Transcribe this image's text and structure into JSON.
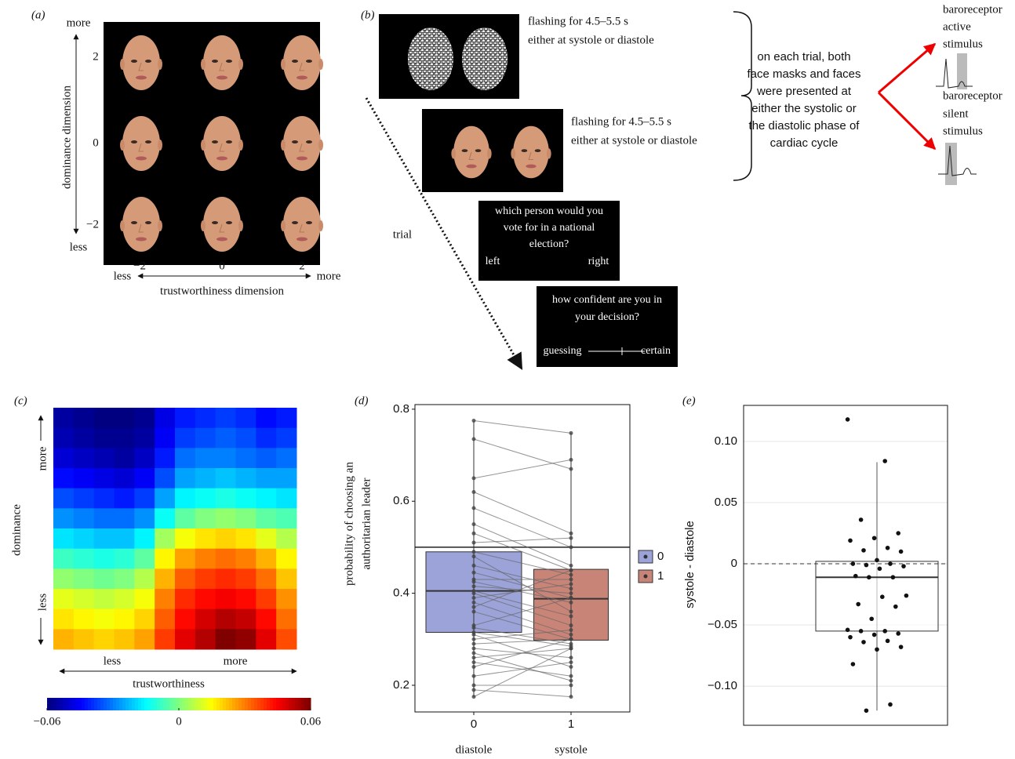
{
  "panel_a": {
    "label": "(a)",
    "y_more": "more",
    "y_less": "less",
    "y_title": "dominance dimension",
    "y_ticks": [
      "2",
      "0",
      "−2"
    ],
    "x_ticks": [
      "−2",
      "0",
      "2"
    ],
    "x_less": "less",
    "x_more": "more",
    "x_title": "trustworthiness dimension"
  },
  "panel_b": {
    "label": "(b)",
    "mask_text": [
      "flashing for 4.5–5.5 s",
      "either at systole or diastole"
    ],
    "face_text": [
      "flashing for 4.5–5.5 s",
      "either at systole or diastole"
    ],
    "question": [
      "which person would you",
      "vote for in a national",
      "election?"
    ],
    "left": "left",
    "right": "right",
    "confidence": [
      "how confident are you in",
      "your decision?"
    ],
    "guessing": "guessing",
    "certain": "certain",
    "trial": "trial",
    "brace_text": [
      "on each trial, both",
      "face masks and faces",
      "were presented at",
      "either the systolic or",
      "the diastolic phase of",
      "cardiac cycle"
    ],
    "active": [
      "baroreceptor",
      "active",
      "stimulus"
    ],
    "silent": [
      "baroreceptor",
      "silent",
      "stimulus"
    ]
  },
  "chart_data": [
    {
      "type": "heatmap",
      "panel_label": "(c)",
      "ylabel": "dominance",
      "xlabel": "trustworthiness",
      "y_more": "more",
      "y_less": "less",
      "x_less": "less",
      "x_more": "more",
      "colormap": "jet",
      "values": [
        [
          -0.056,
          -0.058,
          -0.06,
          -0.06,
          -0.058,
          -0.048,
          -0.042,
          -0.04,
          -0.038,
          -0.04,
          -0.044,
          -0.042
        ],
        [
          -0.054,
          -0.056,
          -0.058,
          -0.058,
          -0.056,
          -0.046,
          -0.038,
          -0.036,
          -0.034,
          -0.036,
          -0.04,
          -0.038
        ],
        [
          -0.05,
          -0.052,
          -0.054,
          -0.056,
          -0.052,
          -0.042,
          -0.032,
          -0.03,
          -0.03,
          -0.032,
          -0.034,
          -0.032
        ],
        [
          -0.044,
          -0.046,
          -0.048,
          -0.05,
          -0.046,
          -0.036,
          -0.026,
          -0.024,
          -0.022,
          -0.024,
          -0.026,
          -0.026
        ],
        [
          -0.036,
          -0.038,
          -0.04,
          -0.042,
          -0.038,
          -0.026,
          -0.016,
          -0.014,
          -0.012,
          -0.014,
          -0.016,
          -0.018
        ],
        [
          -0.028,
          -0.03,
          -0.032,
          -0.032,
          -0.028,
          -0.014,
          -0.004,
          0.0,
          0.002,
          0.0,
          -0.004,
          -0.006
        ],
        [
          -0.018,
          -0.02,
          -0.022,
          -0.022,
          -0.016,
          0.004,
          0.014,
          0.018,
          0.02,
          0.018,
          0.012,
          0.006
        ],
        [
          -0.008,
          -0.01,
          -0.012,
          -0.01,
          -0.004,
          0.016,
          0.026,
          0.03,
          0.032,
          0.03,
          0.024,
          0.016
        ],
        [
          0.002,
          0.0,
          -0.002,
          0.0,
          0.006,
          0.024,
          0.034,
          0.038,
          0.04,
          0.038,
          0.032,
          0.022
        ],
        [
          0.012,
          0.01,
          0.008,
          0.01,
          0.014,
          0.03,
          0.04,
          0.044,
          0.046,
          0.044,
          0.038,
          0.028
        ],
        [
          0.018,
          0.016,
          0.014,
          0.016,
          0.02,
          0.034,
          0.044,
          0.05,
          0.054,
          0.052,
          0.044,
          0.032
        ],
        [
          0.024,
          0.022,
          0.02,
          0.022,
          0.026,
          0.038,
          0.048,
          0.054,
          0.06,
          0.058,
          0.048,
          0.036
        ]
      ],
      "clim": [
        -0.06,
        0.06
      ],
      "cticks": [
        {
          "value": -0.06,
          "label": "−0.06"
        },
        0,
        0.06
      ]
    },
    {
      "type": "paired-box",
      "panel_label": "(d)",
      "categories": [
        "0",
        "1"
      ],
      "category_labels": [
        "diastole",
        "systole"
      ],
      "ylabel_lines": [
        "probability of choosing an",
        "authoritarian leader"
      ],
      "ylim": [
        0.142,
        0.81
      ],
      "yticks": [
        0.2,
        0.4,
        0.6,
        0.8
      ],
      "hline": 0.5,
      "legend": "right",
      "series": [
        {
          "name": "0",
          "color": "#9ba3d8",
          "box": {
            "whisker_low": 0.175,
            "q1": 0.315,
            "median": 0.405,
            "q3": 0.49,
            "whisker_high": 0.775
          },
          "values": [
            0.775,
            0.735,
            0.65,
            0.62,
            0.585,
            0.55,
            0.53,
            0.51,
            0.49,
            0.48,
            0.46,
            0.445,
            0.43,
            0.425,
            0.415,
            0.405,
            0.4,
            0.39,
            0.38,
            0.37,
            0.36,
            0.33,
            0.325,
            0.315,
            0.31,
            0.3,
            0.29,
            0.28,
            0.27,
            0.26,
            0.25,
            0.24,
            0.22,
            0.2,
            0.19,
            0.175
          ]
        },
        {
          "name": "1",
          "color": "#c98478",
          "box": {
            "whisker_low": 0.175,
            "q1": 0.298,
            "median": 0.388,
            "q3": 0.452,
            "whisker_high": 0.748
          },
          "values": [
            0.748,
            0.67,
            0.69,
            0.53,
            0.5,
            0.46,
            0.45,
            0.52,
            0.44,
            0.36,
            0.41,
            0.39,
            0.43,
            0.38,
            0.4,
            0.35,
            0.33,
            0.42,
            0.31,
            0.45,
            0.3,
            0.39,
            0.29,
            0.285,
            0.24,
            0.32,
            0.3,
            0.26,
            0.21,
            0.28,
            0.22,
            0.3,
            0.25,
            0.2,
            0.175,
            0.28
          ]
        }
      ]
    },
    {
      "type": "box",
      "panel_label": "(e)",
      "ylabel": "systole - diastole",
      "ylim": [
        -0.132,
        0.1295
      ],
      "yticks": [
        {
          "value": -0.1,
          "label": "−0.10"
        },
        {
          "value": -0.05,
          "label": "−0.05"
        },
        0,
        0.05,
        {
          "value": 0.1,
          "label": "0.10"
        }
      ],
      "hline": 0,
      "grid": true,
      "box": {
        "whisker_low": -0.12,
        "q1": -0.055,
        "median": -0.011,
        "q3": 0.002,
        "whisker_high": 0.083
      },
      "values": [
        0.118,
        0.084,
        0.036,
        0.025,
        0.021,
        0.019,
        0.013,
        0.011,
        0.01,
        0.003,
        0.0,
        0.0,
        -0.001,
        -0.002,
        -0.004,
        -0.01,
        -0.011,
        -0.011,
        -0.026,
        -0.027,
        -0.033,
        -0.035,
        -0.045,
        -0.054,
        -0.055,
        -0.055,
        -0.057,
        -0.058,
        -0.06,
        -0.063,
        -0.064,
        -0.068,
        -0.07,
        -0.082,
        -0.115,
        -0.12
      ]
    }
  ]
}
